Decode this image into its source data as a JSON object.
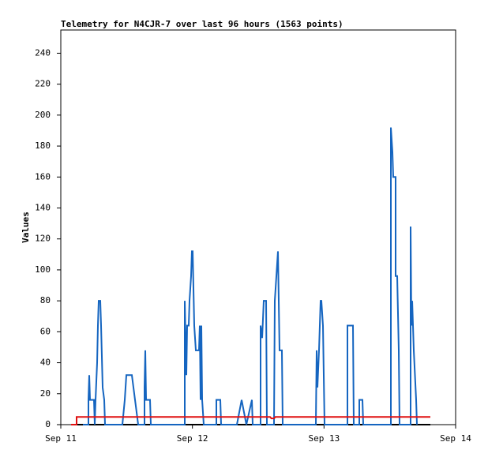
{
  "chart_data": {
    "type": "line",
    "title": "Telemetry for N4CJR-7 over last 96 hours (1563 points)",
    "y_label": "Values",
    "xlim": [
      0,
      3
    ],
    "ylim": [
      0,
      255
    ],
    "xticks": [
      {
        "value": 0,
        "label": "Sep 11"
      },
      {
        "value": 1,
        "label": "Sep 12"
      },
      {
        "value": 2,
        "label": "Sep 13"
      },
      {
        "value": 3,
        "label": "Sep 14"
      }
    ],
    "yticks": [
      0,
      20,
      40,
      60,
      80,
      100,
      120,
      140,
      160,
      180,
      200,
      220,
      240
    ],
    "series": [
      {
        "color": "#000000",
        "x": [
          0.078,
          2.808
        ],
        "values": [
          0,
          0
        ]
      },
      {
        "color": "#1565c0",
        "x": [
          0.168,
          0.21,
          0.21,
          0.216,
          0.222,
          0.252,
          0.258,
          0.264,
          0.276,
          0.282,
          0.288,
          0.3,
          0.306,
          0.318,
          0.33,
          0.336,
          0.468,
          0.486,
          0.498,
          0.54,
          0.588,
          0.636,
          0.636,
          0.642,
          0.648,
          0.678,
          0.684,
          0.942,
          0.942,
          0.954,
          0.96,
          0.972,
          0.978,
          0.99,
          0.996,
          1.002,
          1.014,
          1.026,
          1.05,
          1.056,
          1.062,
          1.068,
          1.074,
          1.086,
          1.182,
          1.182,
          1.212,
          1.218,
          1.338,
          1.374,
          1.41,
          1.452,
          1.458,
          1.518,
          1.518,
          1.53,
          1.542,
          1.56,
          1.566,
          1.62,
          1.626,
          1.638,
          1.65,
          1.662,
          1.68,
          1.686,
          1.938,
          1.944,
          1.95,
          1.962,
          1.974,
          1.98,
          1.992,
          2.004,
          2.178,
          2.178,
          2.22,
          2.226,
          2.268,
          2.268,
          2.292,
          2.298,
          2.508,
          2.508,
          2.52,
          2.526,
          2.544,
          2.544,
          2.556,
          2.568,
          2.574,
          2.658,
          2.658,
          2.664,
          2.67,
          2.682,
          2.7,
          2.706
        ],
        "values": [
          0,
          0,
          16,
          32,
          16,
          16,
          0,
          16,
          40,
          64,
          80,
          80,
          64,
          24,
          16,
          0,
          0,
          16,
          32,
          32,
          0,
          0,
          24,
          48,
          16,
          16,
          0,
          0,
          80,
          32,
          64,
          64,
          80,
          96,
          112,
          112,
          64,
          48,
          48,
          64,
          16,
          64,
          16,
          0,
          0,
          16,
          16,
          0,
          0,
          16,
          0,
          16,
          0,
          0,
          64,
          56,
          80,
          80,
          0,
          0,
          80,
          96,
          112,
          48,
          48,
          0,
          0,
          48,
          24,
          48,
          80,
          80,
          64,
          0,
          0,
          64,
          64,
          0,
          0,
          16,
          16,
          0,
          0,
          192,
          176,
          160,
          160,
          96,
          96,
          48,
          0,
          0,
          128,
          64,
          80,
          48,
          16,
          0
        ]
      },
      {
        "color": "#e01010",
        "x": [
          0.078,
          0.12,
          0.12,
          1.59,
          1.6,
          1.62,
          1.63,
          2.808
        ],
        "values": [
          0,
          0,
          5,
          5,
          4,
          4,
          5,
          5
        ]
      }
    ]
  }
}
